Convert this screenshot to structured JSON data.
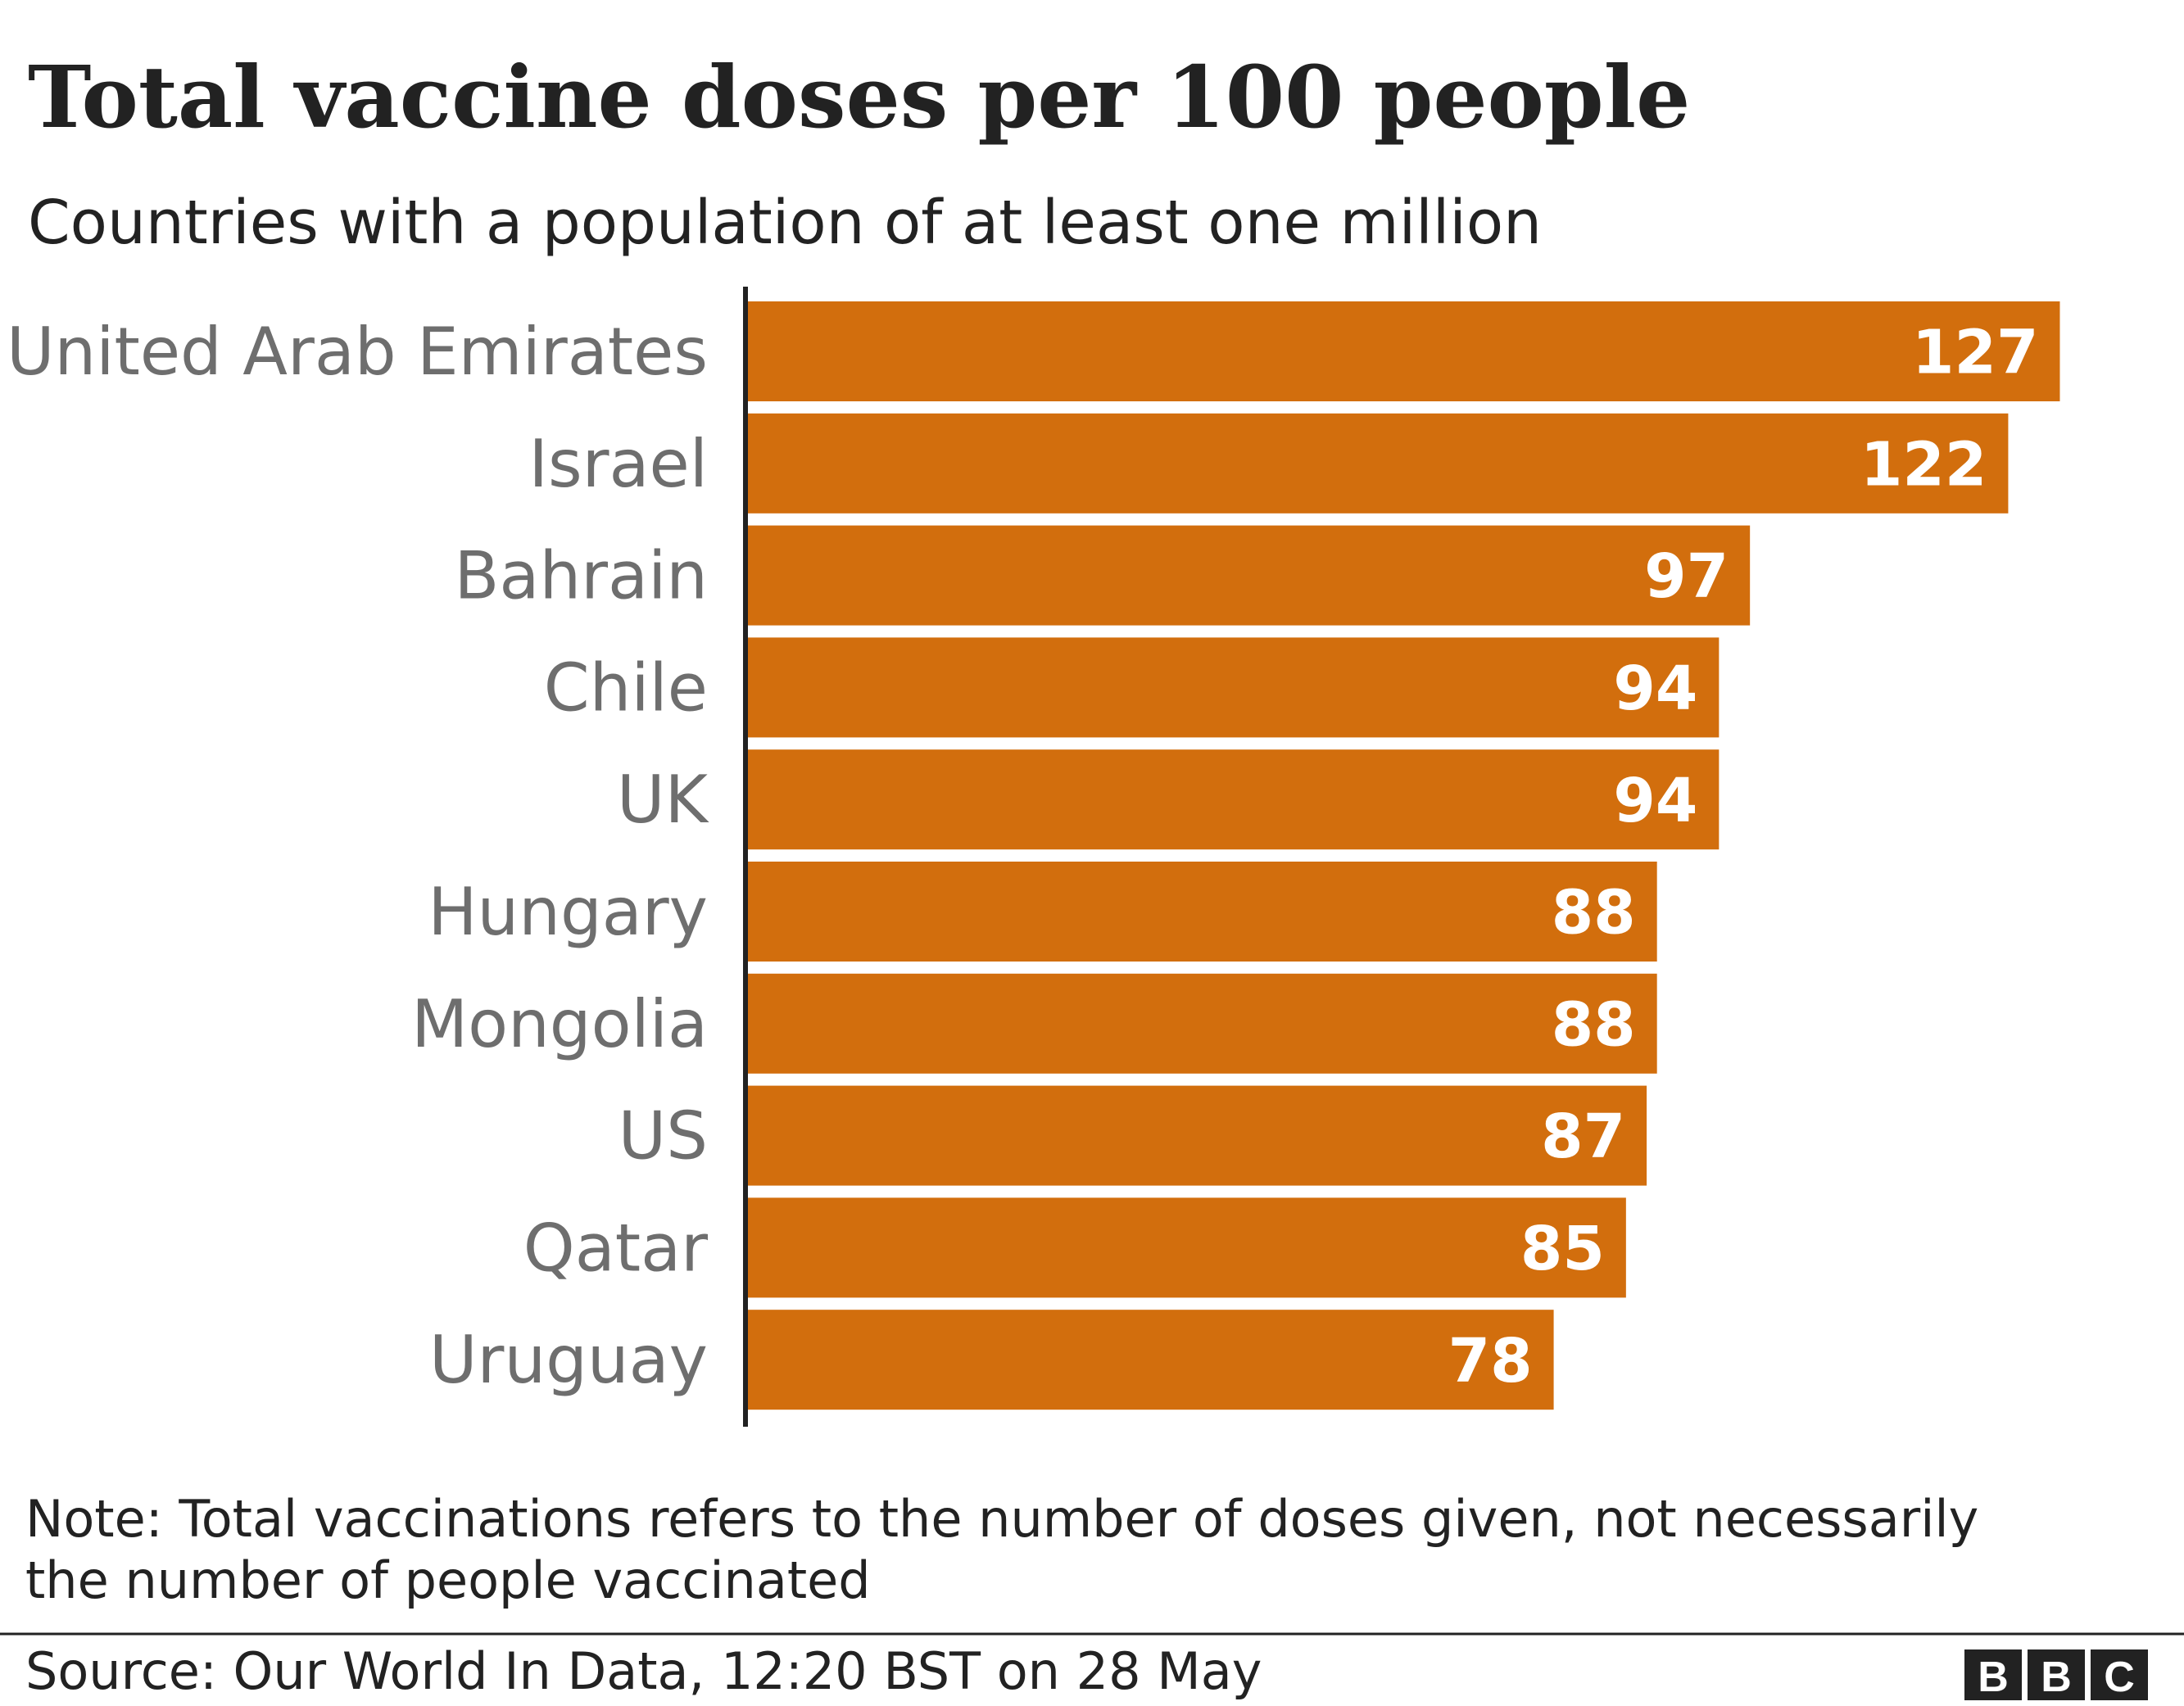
{
  "chart_data": {
    "type": "bar",
    "orientation": "horizontal",
    "title": "Total vaccine doses per 100 people",
    "subtitle": "Countries with a population of at least one million",
    "categories": [
      "United Arab Emirates",
      "Israel",
      "Bahrain",
      "Chile",
      "UK",
      "Hungary",
      "Mongolia",
      "US",
      "Qatar",
      "Uruguay"
    ],
    "values": [
      127,
      122,
      97,
      94,
      94,
      88,
      88,
      87,
      85,
      78
    ],
    "bar_color": "#d26e0d",
    "value_label_color": "#ffffff",
    "grid": false,
    "note": "Note: Total vaccinations refers to the number of doses given, not necessarily the number of people vaccinated",
    "source": "Source: Our World In Data, 12:20 BST on 28 May"
  },
  "logo": {
    "text": "BBC",
    "letters": [
      "B",
      "B",
      "C"
    ]
  }
}
